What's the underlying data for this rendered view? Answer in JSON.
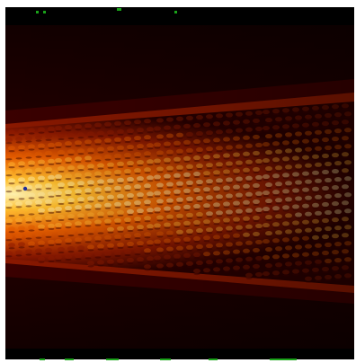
{
  "image": {
    "description_colors": {
      "background": "#000000",
      "dark_red": "#3a0000",
      "mid_red": "#9b1a00",
      "orange": "#e65c00",
      "bright_orange": "#ff9a1a",
      "yellow_white": "#ffe68a",
      "hud_green": "#1aa31a",
      "marker_blue": "#1f2f9a"
    }
  }
}
